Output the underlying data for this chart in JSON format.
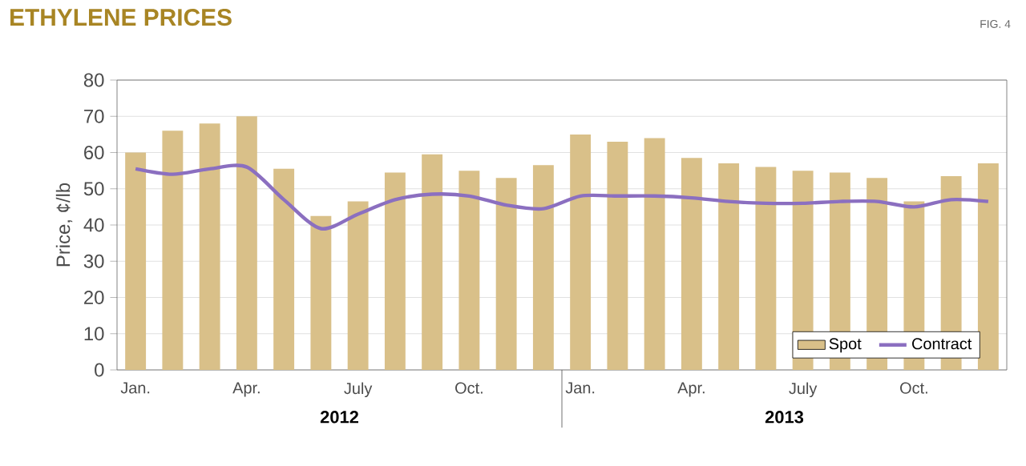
{
  "chart_data": {
    "type": "bar",
    "title": "ETHYLENE PRICES",
    "ylabel": "Price, ¢/lb",
    "categories": [
      "Jan.",
      null,
      null,
      "Apr.",
      null,
      null,
      "July",
      null,
      null,
      "Oct.",
      null,
      null,
      "Jan.",
      null,
      null,
      "Apr.",
      null,
      null,
      "July",
      null,
      null,
      "Oct.",
      null,
      null
    ],
    "series": [
      {
        "name": "Spot",
        "type": "bar",
        "color": "#d9c089",
        "values": [
          60,
          66,
          68,
          70,
          55.5,
          42.5,
          46.5,
          54.5,
          59.5,
          55,
          53,
          56.5,
          65,
          63,
          64,
          58.5,
          57,
          56,
          55,
          54.5,
          53,
          46.5,
          53.5,
          57
        ]
      },
      {
        "name": "Contract",
        "type": "line",
        "color": "#8b6fc0",
        "values": [
          55.5,
          54,
          55.5,
          56,
          47,
          39,
          43,
          47,
          48.5,
          48,
          45.5,
          44.5,
          48,
          48,
          48,
          47.5,
          46.5,
          46,
          46,
          46.5,
          46.5,
          45,
          47,
          46.5
        ]
      }
    ],
    "ylim": [
      0,
      80
    ],
    "yticks": [
      0,
      10,
      20,
      30,
      40,
      50,
      60,
      70,
      80
    ],
    "grid": "y",
    "legend": "bottom right",
    "annotations": [
      "FIG. 4",
      "2012",
      "2013"
    ]
  }
}
